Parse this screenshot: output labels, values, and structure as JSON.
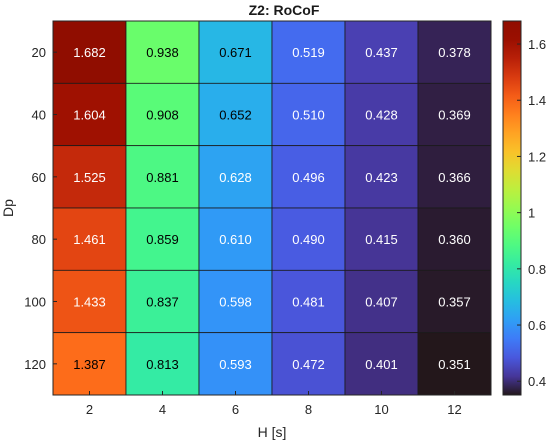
{
  "chart_data": {
    "type": "heatmap",
    "title": "Z2: RoCoF",
    "xlabel": "H [s]",
    "ylabel": "Dp",
    "x_categories": [
      "2",
      "4",
      "6",
      "8",
      "10",
      "12"
    ],
    "y_categories": [
      "20",
      "40",
      "60",
      "80",
      "100",
      "120"
    ],
    "values": [
      [
        1.682,
        0.938,
        0.671,
        0.519,
        0.437,
        0.378
      ],
      [
        1.604,
        0.908,
        0.652,
        0.51,
        0.428,
        0.369
      ],
      [
        1.525,
        0.881,
        0.628,
        0.496,
        0.423,
        0.366
      ],
      [
        1.461,
        0.859,
        0.61,
        0.49,
        0.415,
        0.36
      ],
      [
        1.433,
        0.837,
        0.598,
        0.481,
        0.407,
        0.357
      ],
      [
        1.387,
        0.813,
        0.593,
        0.472,
        0.401,
        0.351
      ]
    ],
    "value_labels": [
      [
        "1.682",
        "0.938",
        "0.671",
        "0.519",
        "0.437",
        "0.378"
      ],
      [
        "1.604",
        "0.908",
        "0.652",
        "0.510",
        "0.428",
        "0.369"
      ],
      [
        "1.525",
        "0.881",
        "0.628",
        "0.496",
        "0.423",
        "0.366"
      ],
      [
        "1.461",
        "0.859",
        "0.610",
        "0.490",
        "0.415",
        "0.360"
      ],
      [
        "1.433",
        "0.837",
        "0.598",
        "0.481",
        "0.407",
        "0.357"
      ],
      [
        "1.387",
        "0.813",
        "0.593",
        "0.472",
        "0.401",
        "0.351"
      ]
    ],
    "colorbar": {
      "range": [
        0.351,
        1.682
      ],
      "ticks": [
        0.4,
        0.6,
        0.8,
        1,
        1.2,
        1.4,
        1.6
      ],
      "tick_labels": [
        "0.4",
        "0.6",
        "0.8",
        "1",
        "1.2",
        "1.4",
        "1.6"
      ],
      "colormap": "turbo",
      "placement": "right"
    },
    "grid": true
  }
}
